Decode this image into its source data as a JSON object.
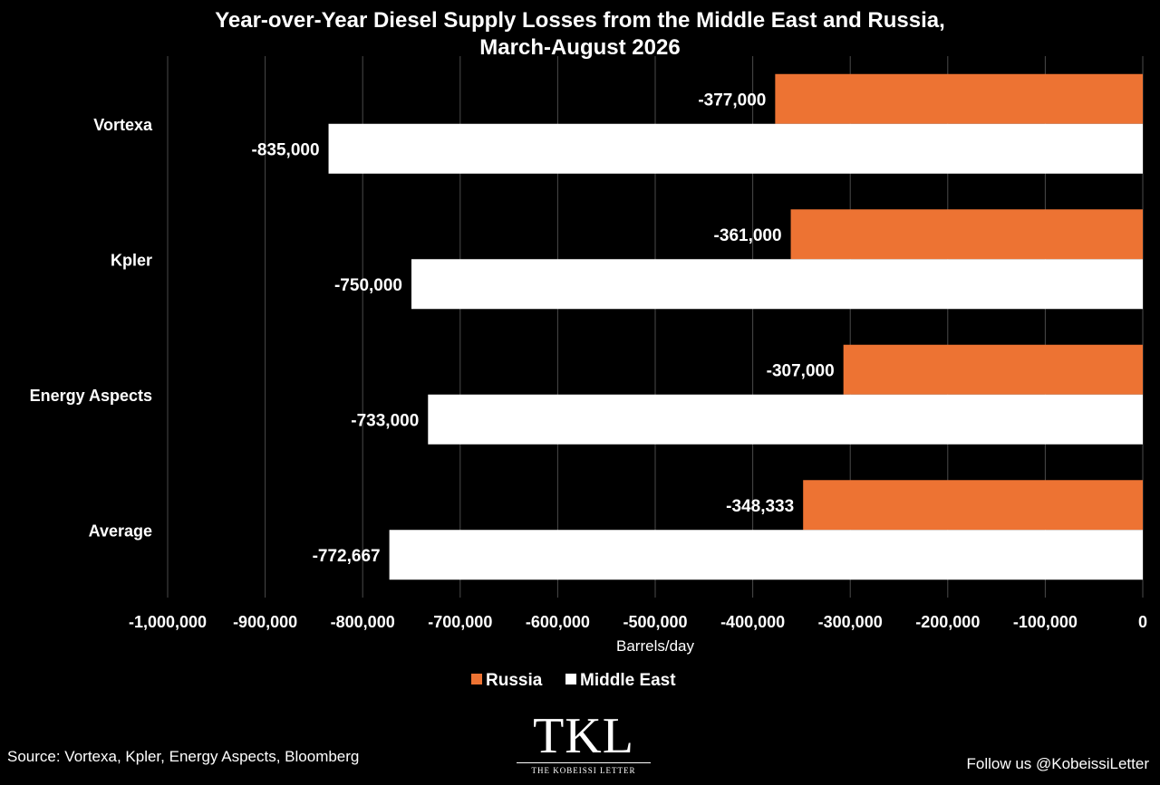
{
  "chart_data": {
    "type": "bar",
    "orientation": "horizontal",
    "title": [
      "Year-over-Year Diesel Supply Losses from the Middle East and Russia,",
      "March-August 2026"
    ],
    "categories": [
      "Vortexa",
      "Kpler",
      "Energy Aspects",
      "Average"
    ],
    "series": [
      {
        "name": "Russia",
        "color": "#ED7333",
        "values": [
          -377000,
          -361000,
          -307000,
          -348333
        ],
        "labels": [
          "-377,000",
          "-361,000",
          "-307,000",
          "-348,333"
        ]
      },
      {
        "name": "Middle East",
        "color": "#FFFFFF",
        "values": [
          -835000,
          -750000,
          -733000,
          -772667
        ],
        "labels": [
          "-835,000",
          "-750,000",
          "-733,000",
          "-772,667"
        ]
      }
    ],
    "xlabel": "Barrels/day",
    "xlim": [
      -1000000,
      0
    ],
    "x_ticks": [
      -1000000,
      -900000,
      -800000,
      -700000,
      -600000,
      -500000,
      -400000,
      -300000,
      -200000,
      -100000,
      0
    ],
    "x_tick_labels": [
      "-1,000,000",
      "-900,000",
      "-800,000",
      "-700,000",
      "-600,000",
      "-500,000",
      "-400,000",
      "-300,000",
      "-200,000",
      "-100,000",
      "0"
    ],
    "grid": "vertical",
    "legend_position": "bottom"
  },
  "footer": {
    "source": "Source: Vortexa, Kpler, Energy Aspects, Bloomberg",
    "follow": "Follow us @KobeissiLetter"
  },
  "logo": {
    "mark": "TKL",
    "subtitle": "THE KOBEISSI LETTER"
  }
}
